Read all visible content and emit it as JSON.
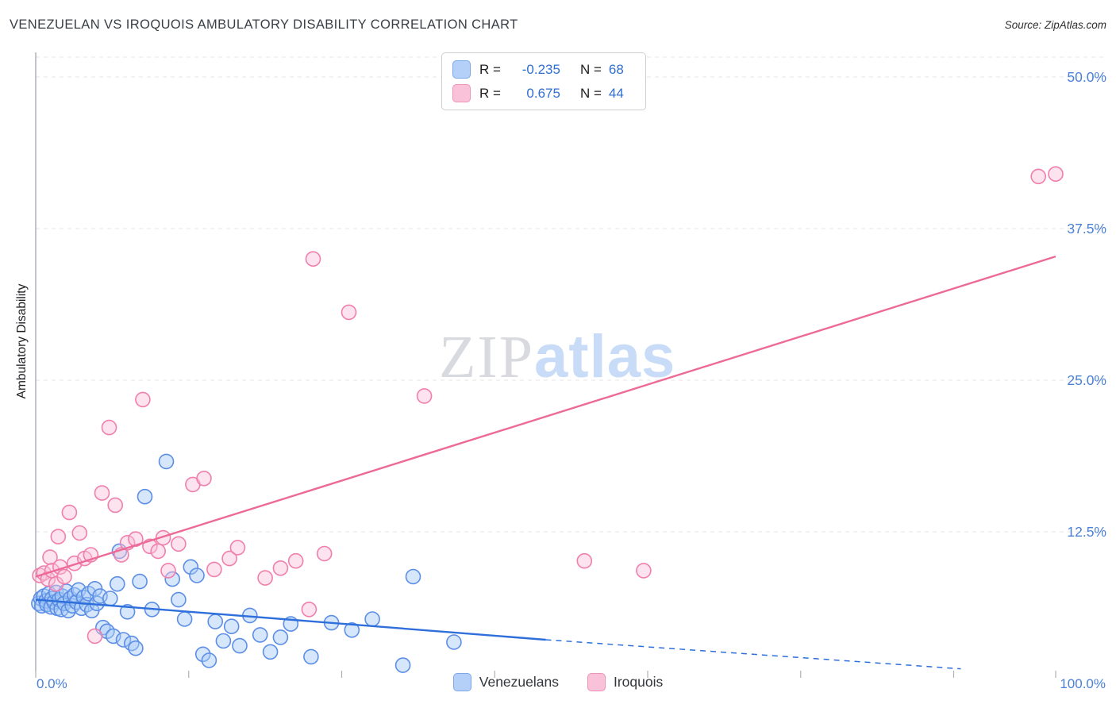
{
  "header": {
    "title": "VENEZUELAN VS IROQUOIS AMBULATORY DISABILITY CORRELATION CHART",
    "source": "Source: ZipAtlas.com"
  },
  "correlation_legend": {
    "rows": [
      {
        "series": "Venezuelans",
        "r_label": "R =",
        "r_value": "-0.235",
        "n_label": "N =",
        "n_value": "68"
      },
      {
        "series": "Iroquois",
        "r_label": "R =",
        "r_value": "0.675",
        "n_label": "N =",
        "n_value": "44"
      }
    ]
  },
  "axes": {
    "y_axis_label": "Ambulatory Disability",
    "x_min_label": "0.0%",
    "x_max_label": "100.0%"
  },
  "watermark": {
    "part1": "ZIP",
    "part2": "atlas"
  },
  "bottom_legend": {
    "items": [
      {
        "label": "Venezuelans"
      },
      {
        "label": "Iroquois"
      }
    ]
  },
  "style": {
    "grid": "#e4e4e4",
    "axis": "#9aa0a6",
    "tick": "#b0b0b0",
    "label_blue": "#4a80d8"
  },
  "chart_data": {
    "type": "scatter",
    "title": "VENEZUELAN VS IROQUOIS AMBULATORY DISABILITY CORRELATION CHART",
    "xlabel": "",
    "ylabel": "Ambulatory Disability",
    "xlim": [
      0,
      105
    ],
    "ylim": [
      0,
      52
    ],
    "grid": "horizontal-dashed",
    "legend_position": "top-center",
    "y_gridlines": [
      12.5,
      25,
      37.5,
      50
    ],
    "y_tick_defs": [
      {
        "label": "50.0%",
        "value": 50
      },
      {
        "label": "37.5%",
        "value": 37.5
      },
      {
        "label": "25.0%",
        "value": 25
      },
      {
        "label": "12.5%",
        "value": 12.5
      }
    ],
    "x_ticks_pct": [
      0,
      15,
      30,
      45,
      60,
      75,
      90,
      100
    ],
    "series": [
      {
        "name": "Venezuelans",
        "R": -0.235,
        "N": 68,
        "fill": "#a6c9f7",
        "stroke": "#5c8ee6",
        "points": [
          [
            0.3,
            6.6
          ],
          [
            0.5,
            7.0
          ],
          [
            0.6,
            6.4
          ],
          [
            0.8,
            7.2
          ],
          [
            1.0,
            6.8
          ],
          [
            1.1,
            6.5
          ],
          [
            1.3,
            7.4
          ],
          [
            1.5,
            6.3
          ],
          [
            1.6,
            7.0
          ],
          [
            1.8,
            6.7
          ],
          [
            2.0,
            7.5
          ],
          [
            2.1,
            6.2
          ],
          [
            2.3,
            6.9
          ],
          [
            2.5,
            6.1
          ],
          [
            2.6,
            7.2
          ],
          [
            2.8,
            6.6
          ],
          [
            3.0,
            7.6
          ],
          [
            3.2,
            6.0
          ],
          [
            3.4,
            7.0
          ],
          [
            3.6,
            6.4
          ],
          [
            3.8,
            7.3
          ],
          [
            4.0,
            6.7
          ],
          [
            4.2,
            7.7
          ],
          [
            4.5,
            6.2
          ],
          [
            4.7,
            7.1
          ],
          [
            5.0,
            6.5
          ],
          [
            5.2,
            7.4
          ],
          [
            5.5,
            6.0
          ],
          [
            5.8,
            7.8
          ],
          [
            6.0,
            6.6
          ],
          [
            6.3,
            7.2
          ],
          [
            6.6,
            4.6
          ],
          [
            7.0,
            4.3
          ],
          [
            7.3,
            7.0
          ],
          [
            7.6,
            3.9
          ],
          [
            8.0,
            8.2
          ],
          [
            8.2,
            10.9
          ],
          [
            8.6,
            3.6
          ],
          [
            9.0,
            5.9
          ],
          [
            9.4,
            3.3
          ],
          [
            9.8,
            2.9
          ],
          [
            10.2,
            8.4
          ],
          [
            10.7,
            15.4
          ],
          [
            11.4,
            6.1
          ],
          [
            12.8,
            18.3
          ],
          [
            13.4,
            8.6
          ],
          [
            14.0,
            6.9
          ],
          [
            14.6,
            5.3
          ],
          [
            15.2,
            9.6
          ],
          [
            15.8,
            8.9
          ],
          [
            16.4,
            2.4
          ],
          [
            17.0,
            1.9
          ],
          [
            17.6,
            5.1
          ],
          [
            18.4,
            3.5
          ],
          [
            19.2,
            4.7
          ],
          [
            20.0,
            3.1
          ],
          [
            21.0,
            5.6
          ],
          [
            22.0,
            4.0
          ],
          [
            23.0,
            2.6
          ],
          [
            24.0,
            3.8
          ],
          [
            25.0,
            4.9
          ],
          [
            27.0,
            2.2
          ],
          [
            29.0,
            5.0
          ],
          [
            31.0,
            4.4
          ],
          [
            33.0,
            5.3
          ],
          [
            36.0,
            1.5
          ],
          [
            37.0,
            8.8
          ],
          [
            41.0,
            3.4
          ]
        ]
      },
      {
        "name": "Iroquois",
        "R": 0.675,
        "N": 44,
        "fill": "#f9c2d6",
        "stroke": "#f07fac",
        "points": [
          [
            0.4,
            8.9
          ],
          [
            0.8,
            9.1
          ],
          [
            1.2,
            8.6
          ],
          [
            1.4,
            10.4
          ],
          [
            1.6,
            9.3
          ],
          [
            2.0,
            8.2
          ],
          [
            2.2,
            12.1
          ],
          [
            2.4,
            9.6
          ],
          [
            2.8,
            8.8
          ],
          [
            3.3,
            14.1
          ],
          [
            3.8,
            9.9
          ],
          [
            4.3,
            12.4
          ],
          [
            4.8,
            10.3
          ],
          [
            5.4,
            10.6
          ],
          [
            5.8,
            3.9
          ],
          [
            6.5,
            15.7
          ],
          [
            7.2,
            21.1
          ],
          [
            7.8,
            14.7
          ],
          [
            8.4,
            10.6
          ],
          [
            9.0,
            11.6
          ],
          [
            9.8,
            11.9
          ],
          [
            10.5,
            23.4
          ],
          [
            11.2,
            11.3
          ],
          [
            12.0,
            10.9
          ],
          [
            12.5,
            12.0
          ],
          [
            13.0,
            9.3
          ],
          [
            14.0,
            11.5
          ],
          [
            15.4,
            16.4
          ],
          [
            16.5,
            16.9
          ],
          [
            17.5,
            9.4
          ],
          [
            19.0,
            10.3
          ],
          [
            19.8,
            11.2
          ],
          [
            22.5,
            8.7
          ],
          [
            24.0,
            9.5
          ],
          [
            25.5,
            10.1
          ],
          [
            26.8,
            6.1
          ],
          [
            27.2,
            35.0
          ],
          [
            28.3,
            10.7
          ],
          [
            30.7,
            30.6
          ],
          [
            38.1,
            23.7
          ],
          [
            53.8,
            10.1
          ],
          [
            59.6,
            9.3
          ],
          [
            98.3,
            41.8
          ],
          [
            100.0,
            42.0
          ]
        ]
      }
    ],
    "trend_lines": [
      {
        "series": "Venezuelans",
        "color": "#2e6fdb",
        "solid": [
          [
            0,
            6.9
          ],
          [
            50,
            3.6
          ]
        ],
        "dashed": [
          [
            50,
            3.6
          ],
          [
            90.7,
            1.2
          ]
        ]
      },
      {
        "series": "Iroquois",
        "color": "#ed6a97",
        "solid": [
          [
            0,
            8.8
          ],
          [
            100,
            35.2
          ]
        ]
      }
    ]
  }
}
